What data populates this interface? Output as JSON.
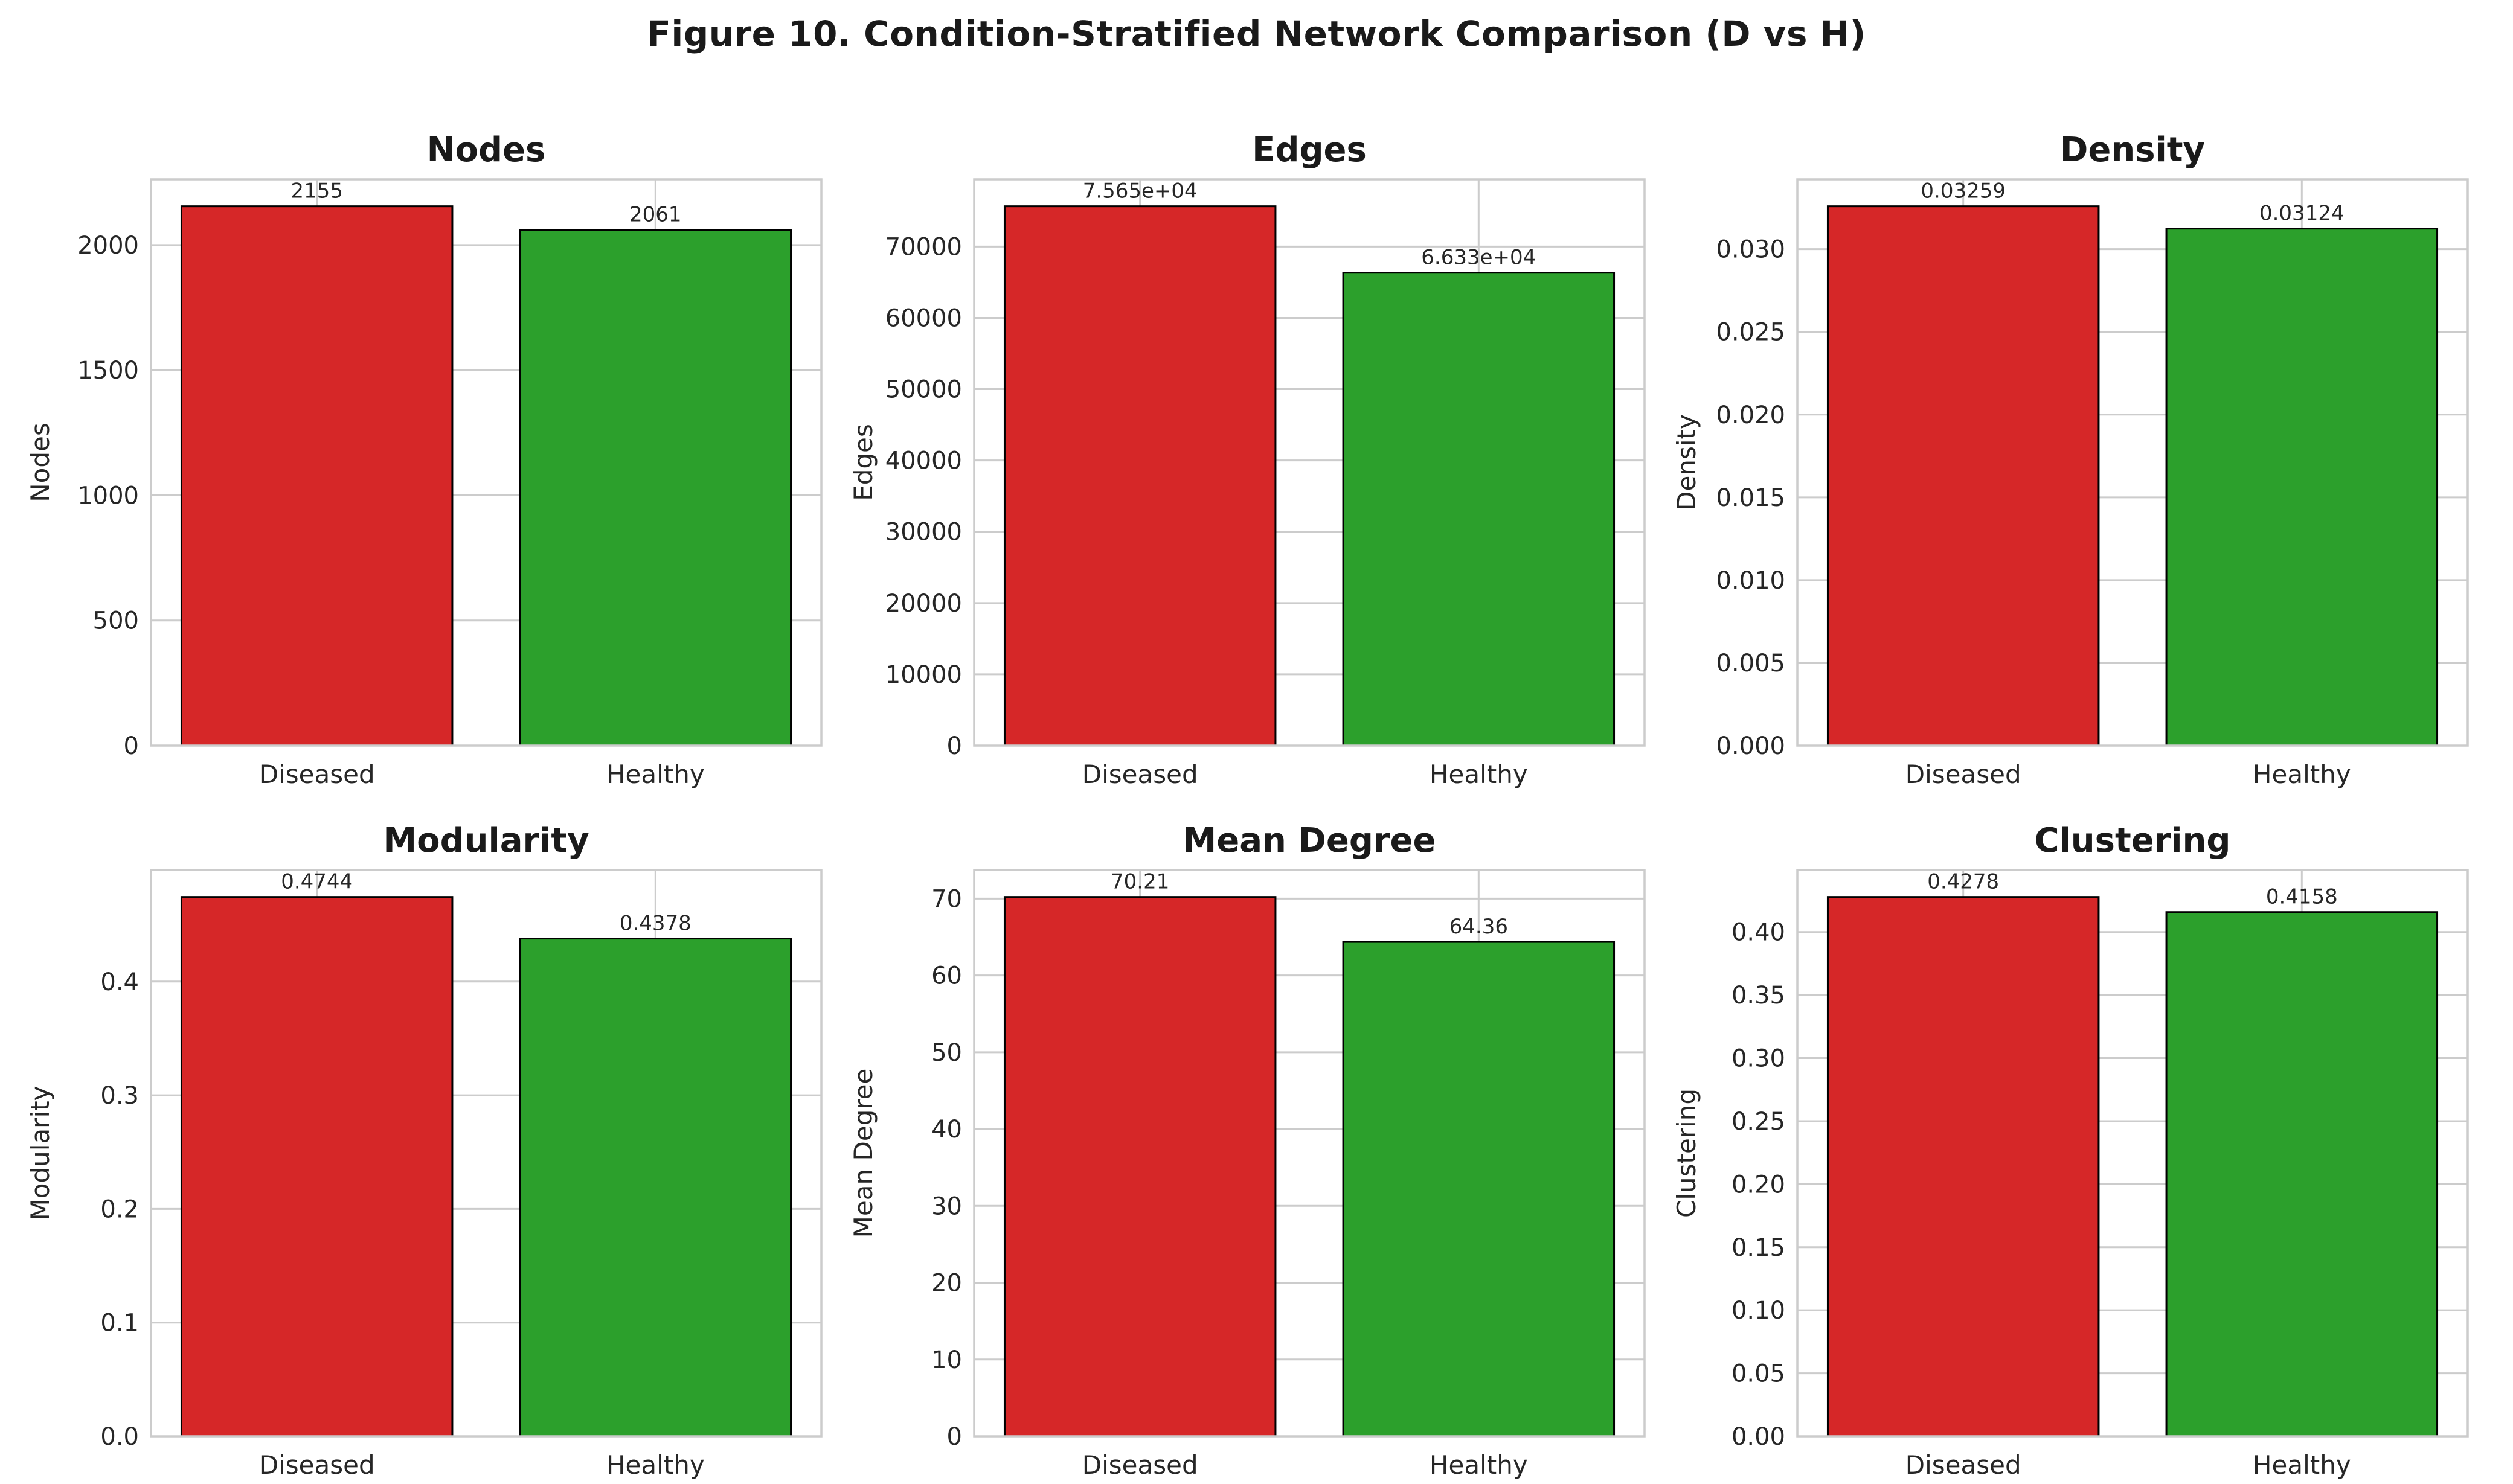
{
  "figure_title": "Figure 10. Condition-Stratified Network Comparison (D vs H)",
  "theme": {
    "diseased_color": "#d62728",
    "healthy_color": "#2ca02c",
    "bar_edge_color": "#000000",
    "grid_color": "#cccccc",
    "text_color": "#262626",
    "background": "#ffffff"
  },
  "categories": [
    "Diseased",
    "Healthy"
  ],
  "chart_data": [
    {
      "type": "bar",
      "title": "Nodes",
      "ylabel": "Nodes",
      "categories": [
        "Diseased",
        "Healthy"
      ],
      "values": [
        2155,
        2061
      ],
      "value_labels": [
        "2155",
        "2061"
      ],
      "ylim": [
        0,
        2262.75
      ],
      "yticks": [
        0,
        500,
        1000,
        1500,
        2000
      ],
      "ytick_labels": [
        "0",
        "500",
        "1000",
        "1500",
        "2000"
      ],
      "grid": "on",
      "legend": "none"
    },
    {
      "type": "bar",
      "title": "Edges",
      "ylabel": "Edges",
      "categories": [
        "Diseased",
        "Healthy"
      ],
      "values": [
        75650,
        66330
      ],
      "value_labels": [
        "7.565e+04",
        "6.633e+04"
      ],
      "ylim": [
        0,
        79432.5
      ],
      "yticks": [
        0,
        10000,
        20000,
        30000,
        40000,
        50000,
        60000,
        70000
      ],
      "ytick_labels": [
        "0",
        "10000",
        "20000",
        "30000",
        "40000",
        "50000",
        "60000",
        "70000"
      ],
      "grid": "on",
      "legend": "none"
    },
    {
      "type": "bar",
      "title": "Density",
      "ylabel": "Density",
      "categories": [
        "Diseased",
        "Healthy"
      ],
      "values": [
        0.03259,
        0.03124
      ],
      "value_labels": [
        "0.03259",
        "0.03124"
      ],
      "ylim": [
        0,
        0.0342195
      ],
      "yticks": [
        0,
        0.005,
        0.01,
        0.015,
        0.02,
        0.025,
        0.03
      ],
      "ytick_labels": [
        "0.000",
        "0.005",
        "0.010",
        "0.015",
        "0.020",
        "0.025",
        "0.030"
      ],
      "grid": "on",
      "legend": "none"
    },
    {
      "type": "bar",
      "title": "Modularity",
      "ylabel": "Modularity",
      "categories": [
        "Diseased",
        "Healthy"
      ],
      "values": [
        0.4744,
        0.4378
      ],
      "value_labels": [
        "0.4744",
        "0.4378"
      ],
      "ylim": [
        0,
        0.49812
      ],
      "yticks": [
        0,
        0.1,
        0.2,
        0.3,
        0.4
      ],
      "ytick_labels": [
        "0.0",
        "0.1",
        "0.2",
        "0.3",
        "0.4"
      ],
      "grid": "on",
      "legend": "none"
    },
    {
      "type": "bar",
      "title": "Mean Degree",
      "ylabel": "Mean Degree",
      "categories": [
        "Diseased",
        "Healthy"
      ],
      "values": [
        70.21,
        64.36
      ],
      "value_labels": [
        "70.21",
        "64.36"
      ],
      "ylim": [
        0,
        73.7205
      ],
      "yticks": [
        0,
        10,
        20,
        30,
        40,
        50,
        60,
        70
      ],
      "ytick_labels": [
        "0",
        "10",
        "20",
        "30",
        "40",
        "50",
        "60",
        "70"
      ],
      "grid": "on",
      "legend": "none"
    },
    {
      "type": "bar",
      "title": "Clustering",
      "ylabel": "Clustering",
      "categories": [
        "Diseased",
        "Healthy"
      ],
      "values": [
        0.4278,
        0.4158
      ],
      "value_labels": [
        "0.4278",
        "0.4158"
      ],
      "ylim": [
        0,
        0.44919
      ],
      "yticks": [
        0,
        0.05,
        0.1,
        0.15,
        0.2,
        0.25,
        0.3,
        0.35,
        0.4
      ],
      "ytick_labels": [
        "0.00",
        "0.05",
        "0.10",
        "0.15",
        "0.20",
        "0.25",
        "0.30",
        "0.35",
        "0.40"
      ],
      "grid": "on",
      "legend": "none"
    }
  ]
}
